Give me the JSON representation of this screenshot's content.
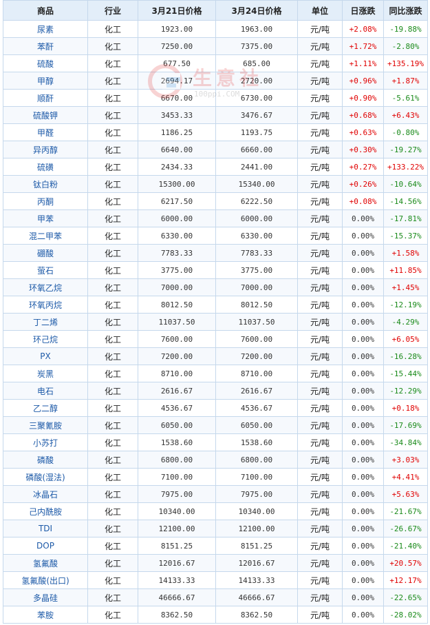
{
  "headers": [
    "商品",
    "行业",
    "3月21日价格",
    "3月24日价格",
    "单位",
    "日涨跌",
    "同比涨跌"
  ],
  "watermark": {
    "text": "生意社",
    "url": "100ppi.COM"
  },
  "rows": [
    {
      "name": "尿素",
      "industry": "化工",
      "p1": "1923.00",
      "p2": "1963.00",
      "unit": "元/吨",
      "daily": "+2.08%",
      "yoy": "-19.88%"
    },
    {
      "name": "苯酐",
      "industry": "化工",
      "p1": "7250.00",
      "p2": "7375.00",
      "unit": "元/吨",
      "daily": "+1.72%",
      "yoy": "-2.80%"
    },
    {
      "name": "硫酸",
      "industry": "化工",
      "p1": "677.50",
      "p2": "685.00",
      "unit": "元/吨",
      "daily": "+1.11%",
      "yoy": "+135.19%"
    },
    {
      "name": "甲醇",
      "industry": "化工",
      "p1": "2694.17",
      "p2": "2720.00",
      "unit": "元/吨",
      "daily": "+0.96%",
      "yoy": "+1.87%"
    },
    {
      "name": "顺酐",
      "industry": "化工",
      "p1": "6670.00",
      "p2": "6730.00",
      "unit": "元/吨",
      "daily": "+0.90%",
      "yoy": "-5.61%"
    },
    {
      "name": "硫酸钾",
      "industry": "化工",
      "p1": "3453.33",
      "p2": "3476.67",
      "unit": "元/吨",
      "daily": "+0.68%",
      "yoy": "+6.43%"
    },
    {
      "name": "甲醛",
      "industry": "化工",
      "p1": "1186.25",
      "p2": "1193.75",
      "unit": "元/吨",
      "daily": "+0.63%",
      "yoy": "-0.80%"
    },
    {
      "name": "异丙醇",
      "industry": "化工",
      "p1": "6640.00",
      "p2": "6660.00",
      "unit": "元/吨",
      "daily": "+0.30%",
      "yoy": "-19.27%"
    },
    {
      "name": "硫磺",
      "industry": "化工",
      "p1": "2434.33",
      "p2": "2441.00",
      "unit": "元/吨",
      "daily": "+0.27%",
      "yoy": "+133.22%"
    },
    {
      "name": "钛白粉",
      "industry": "化工",
      "p1": "15300.00",
      "p2": "15340.00",
      "unit": "元/吨",
      "daily": "+0.26%",
      "yoy": "-10.64%"
    },
    {
      "name": "丙酮",
      "industry": "化工",
      "p1": "6217.50",
      "p2": "6222.50",
      "unit": "元/吨",
      "daily": "+0.08%",
      "yoy": "-14.56%"
    },
    {
      "name": "甲苯",
      "industry": "化工",
      "p1": "6000.00",
      "p2": "6000.00",
      "unit": "元/吨",
      "daily": "0.00%",
      "yoy": "-17.81%"
    },
    {
      "name": "混二甲苯",
      "industry": "化工",
      "p1": "6330.00",
      "p2": "6330.00",
      "unit": "元/吨",
      "daily": "0.00%",
      "yoy": "-15.37%"
    },
    {
      "name": "硼酸",
      "industry": "化工",
      "p1": "7783.33",
      "p2": "7783.33",
      "unit": "元/吨",
      "daily": "0.00%",
      "yoy": "+1.58%"
    },
    {
      "name": "萤石",
      "industry": "化工",
      "p1": "3775.00",
      "p2": "3775.00",
      "unit": "元/吨",
      "daily": "0.00%",
      "yoy": "+11.85%"
    },
    {
      "name": "环氧乙烷",
      "industry": "化工",
      "p1": "7000.00",
      "p2": "7000.00",
      "unit": "元/吨",
      "daily": "0.00%",
      "yoy": "+1.45%"
    },
    {
      "name": "环氧丙烷",
      "industry": "化工",
      "p1": "8012.50",
      "p2": "8012.50",
      "unit": "元/吨",
      "daily": "0.00%",
      "yoy": "-12.19%"
    },
    {
      "name": "丁二烯",
      "industry": "化工",
      "p1": "11037.50",
      "p2": "11037.50",
      "unit": "元/吨",
      "daily": "0.00%",
      "yoy": "-4.29%"
    },
    {
      "name": "环己烷",
      "industry": "化工",
      "p1": "7600.00",
      "p2": "7600.00",
      "unit": "元/吨",
      "daily": "0.00%",
      "yoy": "+6.05%"
    },
    {
      "name": "PX",
      "industry": "化工",
      "p1": "7200.00",
      "p2": "7200.00",
      "unit": "元/吨",
      "daily": "0.00%",
      "yoy": "-16.28%"
    },
    {
      "name": "炭黑",
      "industry": "化工",
      "p1": "8710.00",
      "p2": "8710.00",
      "unit": "元/吨",
      "daily": "0.00%",
      "yoy": "-15.44%"
    },
    {
      "name": "电石",
      "industry": "化工",
      "p1": "2616.67",
      "p2": "2616.67",
      "unit": "元/吨",
      "daily": "0.00%",
      "yoy": "-12.29%"
    },
    {
      "name": "乙二醇",
      "industry": "化工",
      "p1": "4536.67",
      "p2": "4536.67",
      "unit": "元/吨",
      "daily": "0.00%",
      "yoy": "+0.18%"
    },
    {
      "name": "三聚氰胺",
      "industry": "化工",
      "p1": "6050.00",
      "p2": "6050.00",
      "unit": "元/吨",
      "daily": "0.00%",
      "yoy": "-17.69%"
    },
    {
      "name": "小苏打",
      "industry": "化工",
      "p1": "1538.60",
      "p2": "1538.60",
      "unit": "元/吨",
      "daily": "0.00%",
      "yoy": "-34.84%"
    },
    {
      "name": "磷酸",
      "industry": "化工",
      "p1": "6800.00",
      "p2": "6800.00",
      "unit": "元/吨",
      "daily": "0.00%",
      "yoy": "+3.03%"
    },
    {
      "name": "磷酸(湿法)",
      "industry": "化工",
      "p1": "7100.00",
      "p2": "7100.00",
      "unit": "元/吨",
      "daily": "0.00%",
      "yoy": "+4.41%"
    },
    {
      "name": "冰晶石",
      "industry": "化工",
      "p1": "7975.00",
      "p2": "7975.00",
      "unit": "元/吨",
      "daily": "0.00%",
      "yoy": "+5.63%"
    },
    {
      "name": "己内酰胺",
      "industry": "化工",
      "p1": "10340.00",
      "p2": "10340.00",
      "unit": "元/吨",
      "daily": "0.00%",
      "yoy": "-21.67%"
    },
    {
      "name": "TDI",
      "industry": "化工",
      "p1": "12100.00",
      "p2": "12100.00",
      "unit": "元/吨",
      "daily": "0.00%",
      "yoy": "-26.67%"
    },
    {
      "name": "DOP",
      "industry": "化工",
      "p1": "8151.25",
      "p2": "8151.25",
      "unit": "元/吨",
      "daily": "0.00%",
      "yoy": "-21.40%"
    },
    {
      "name": "氢氟酸",
      "industry": "化工",
      "p1": "12016.67",
      "p2": "12016.67",
      "unit": "元/吨",
      "daily": "0.00%",
      "yoy": "+20.57%"
    },
    {
      "name": "氢氟酸(出口)",
      "industry": "化工",
      "p1": "14133.33",
      "p2": "14133.33",
      "unit": "元/吨",
      "daily": "0.00%",
      "yoy": "+12.17%"
    },
    {
      "name": "多晶硅",
      "industry": "化工",
      "p1": "46666.67",
      "p2": "46666.67",
      "unit": "元/吨",
      "daily": "0.00%",
      "yoy": "-22.65%"
    },
    {
      "name": "苯胺",
      "industry": "化工",
      "p1": "8362.50",
      "p2": "8362.50",
      "unit": "元/吨",
      "daily": "0.00%",
      "yoy": "-28.02%"
    }
  ],
  "colors": {
    "up": "#e00000",
    "down": "#1a8a1a",
    "header_bg": "#e3eef9",
    "border": "#c5d8ec",
    "link": "#1d5aa8"
  }
}
